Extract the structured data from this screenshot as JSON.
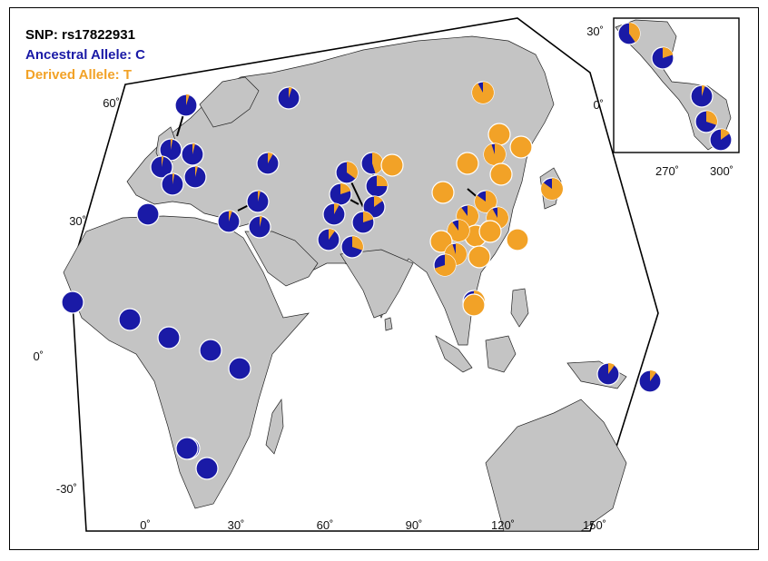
{
  "legend": {
    "title": "SNP: rs17822931",
    "ancestral": "Ancestral Allele: C",
    "derived": "Derived Allele: T"
  },
  "colors": {
    "ancestral": "#1a1aa6",
    "derived": "#f2a227",
    "land": "#c4c4c4",
    "ocean": "#ffffff"
  },
  "axes": {
    "lat_ticks": [
      "60˚",
      "30˚",
      "0˚",
      "-30˚"
    ],
    "lon_ticks": [
      "0˚",
      "30˚",
      "60˚",
      "90˚",
      "120˚",
      "150˚"
    ]
  },
  "inset": {
    "lat_ticks": [
      "30˚",
      "0˚"
    ],
    "lon_ticks": [
      "270˚",
      "300˚"
    ]
  },
  "populations": [
    {
      "region": "Europe",
      "derived_frac": 0.05
    },
    {
      "region": "Europe",
      "derived_frac": 0.05
    },
    {
      "region": "Europe",
      "derived_frac": 0.03
    },
    {
      "region": "Europe",
      "derived_frac": 0.04
    },
    {
      "region": "Europe",
      "derived_frac": 0.03
    },
    {
      "region": "Europe",
      "derived_frac": 0.04
    },
    {
      "region": "Europe",
      "derived_frac": 0.03
    },
    {
      "region": "Europe",
      "derived_frac": 0.08
    },
    {
      "region": "Middle East",
      "derived_frac": 0.0
    },
    {
      "region": "Middle East",
      "derived_frac": 0.05
    },
    {
      "region": "Middle East",
      "derived_frac": 0.04
    },
    {
      "region": "Middle East",
      "derived_frac": 0.04
    },
    {
      "region": "Central/South Asia",
      "derived_frac": 0.35
    },
    {
      "region": "Central/South Asia",
      "derived_frac": 0.45
    },
    {
      "region": "Central/South Asia",
      "derived_frac": 0.2
    },
    {
      "region": "Central/South Asia",
      "derived_frac": 0.25
    },
    {
      "region": "Central/South Asia",
      "derived_frac": 0.15
    },
    {
      "region": "Central/South Asia",
      "derived_frac": 0.2
    },
    {
      "region": "Central/South Asia",
      "derived_frac": 0.08
    },
    {
      "region": "Central/South Asia",
      "derived_frac": 0.1
    },
    {
      "region": "Central/South Asia",
      "derived_frac": 0.3
    },
    {
      "region": "Central Asia",
      "derived_frac": 1.0
    },
    {
      "region": "East Asia",
      "derived_frac": 0.92
    },
    {
      "region": "East Asia",
      "derived_frac": 1.0
    },
    {
      "region": "East Asia",
      "derived_frac": 1.0
    },
    {
      "region": "East Asia",
      "derived_frac": 0.95
    },
    {
      "region": "East Asia",
      "derived_frac": 1.0
    },
    {
      "region": "East Asia",
      "derived_frac": 1.0
    },
    {
      "region": "East Asia",
      "derived_frac": 0.85
    },
    {
      "region": "East Asia",
      "derived_frac": 0.9
    },
    {
      "region": "East Asia",
      "derived_frac": 0.92
    },
    {
      "region": "East Asia",
      "derived_frac": 1.0
    },
    {
      "region": "East Asia",
      "derived_frac": 0.9
    },
    {
      "region": "East Asia",
      "derived_frac": 1.0
    },
    {
      "region": "East Asia",
      "derived_frac": 1.0
    },
    {
      "region": "East Asia",
      "derived_frac": 1.0
    },
    {
      "region": "East Asia",
      "derived_frac": 1.0
    },
    {
      "region": "East Asia",
      "derived_frac": 0.95
    },
    {
      "region": "East Asia",
      "derived_frac": 1.0
    },
    {
      "region": "Southeast Asia",
      "derived_frac": 0.7
    },
    {
      "region": "Southeast Asia",
      "derived_frac": 0.3
    },
    {
      "region": "Southeast Asia",
      "derived_frac": 1.0
    },
    {
      "region": "Japan",
      "derived_frac": 0.85
    },
    {
      "region": "Oceania",
      "derived_frac": 0.1
    },
    {
      "region": "Oceania",
      "derived_frac": 0.1
    },
    {
      "region": "Africa",
      "derived_frac": 0.0
    },
    {
      "region": "Africa",
      "derived_frac": 0.0
    },
    {
      "region": "Africa",
      "derived_frac": 0.0
    },
    {
      "region": "Africa",
      "derived_frac": 0.0
    },
    {
      "region": "Africa",
      "derived_frac": 0.0
    },
    {
      "region": "Africa",
      "derived_frac": 0.0
    },
    {
      "region": "Africa",
      "derived_frac": 0.0
    },
    {
      "region": "Africa",
      "derived_frac": 0.0
    },
    {
      "region": "Americas",
      "derived_frac": 0.4
    },
    {
      "region": "Americas",
      "derived_frac": 0.2
    },
    {
      "region": "Americas",
      "derived_frac": 0.05
    },
    {
      "region": "Americas",
      "derived_frac": 0.3
    },
    {
      "region": "Americas",
      "derived_frac": 0.15
    }
  ]
}
